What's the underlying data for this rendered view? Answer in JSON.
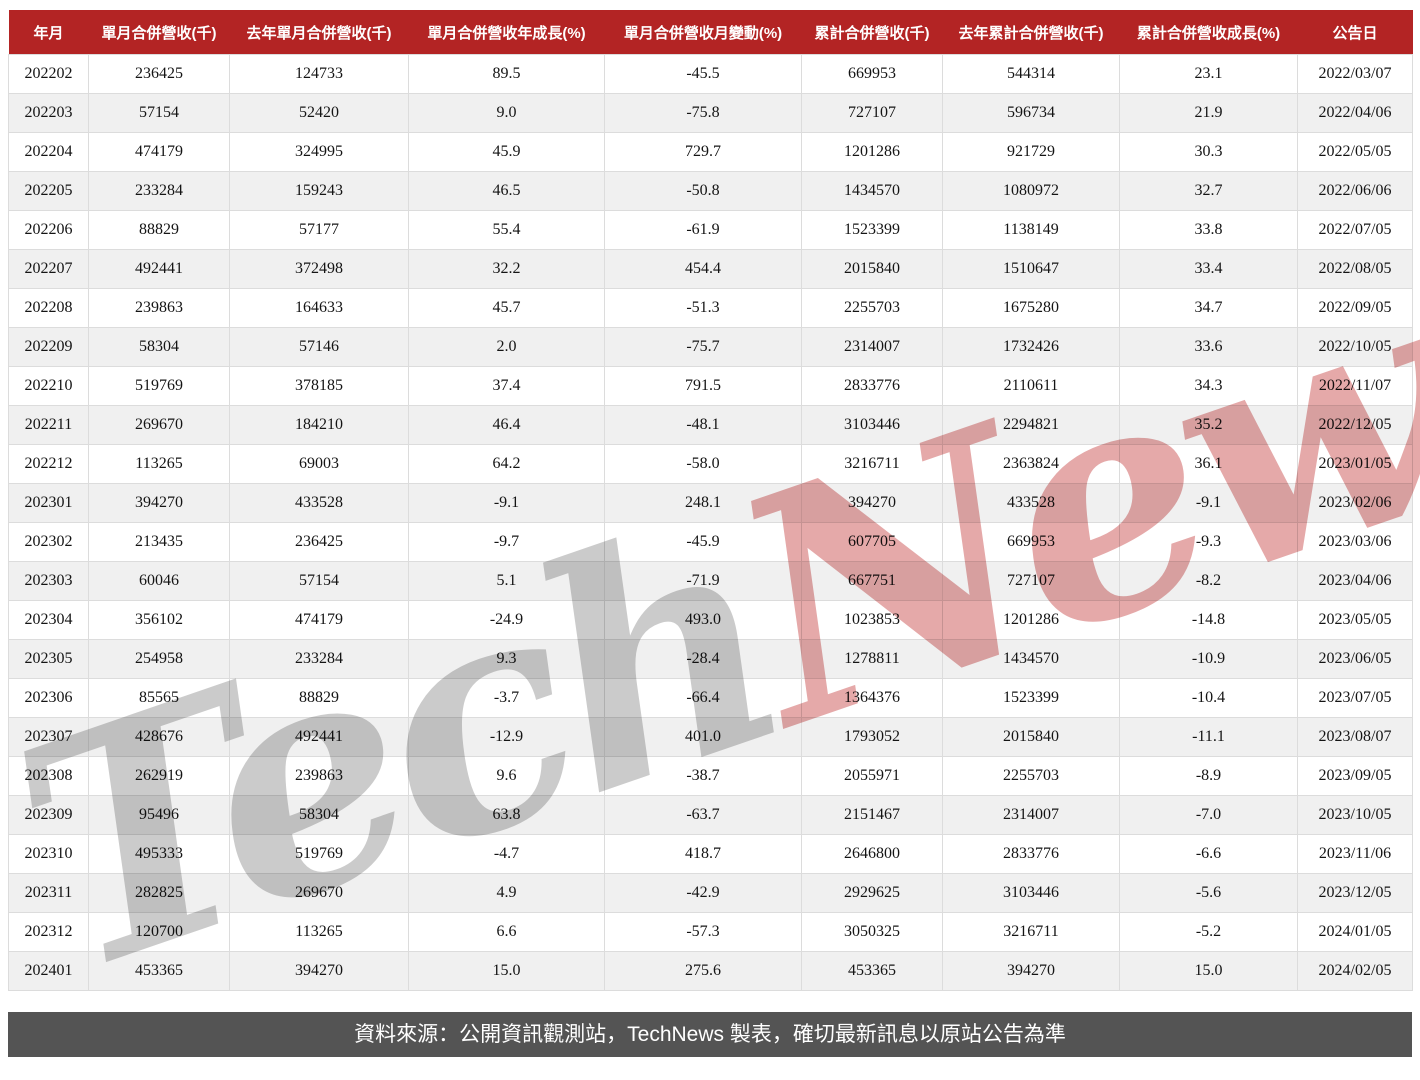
{
  "chart_data": {
    "type": "table",
    "title": "月營收統計表",
    "columns": [
      "年月",
      "單月合併營收(千)",
      "去年單月合併營收(千)",
      "單月合併營收年成長(%)",
      "單月合併營收月變動(%)",
      "累計合併營收(千)",
      "去年累計合併營收(千)",
      "累計合併營收成長(%)",
      "公告日"
    ],
    "rows": [
      [
        "202202",
        "236425",
        "124733",
        "89.5",
        "-45.5",
        "669953",
        "544314",
        "23.1",
        "2022/03/07"
      ],
      [
        "202203",
        "57154",
        "52420",
        "9.0",
        "-75.8",
        "727107",
        "596734",
        "21.9",
        "2022/04/06"
      ],
      [
        "202204",
        "474179",
        "324995",
        "45.9",
        "729.7",
        "1201286",
        "921729",
        "30.3",
        "2022/05/05"
      ],
      [
        "202205",
        "233284",
        "159243",
        "46.5",
        "-50.8",
        "1434570",
        "1080972",
        "32.7",
        "2022/06/06"
      ],
      [
        "202206",
        "88829",
        "57177",
        "55.4",
        "-61.9",
        "1523399",
        "1138149",
        "33.8",
        "2022/07/05"
      ],
      [
        "202207",
        "492441",
        "372498",
        "32.2",
        "454.4",
        "2015840",
        "1510647",
        "33.4",
        "2022/08/05"
      ],
      [
        "202208",
        "239863",
        "164633",
        "45.7",
        "-51.3",
        "2255703",
        "1675280",
        "34.7",
        "2022/09/05"
      ],
      [
        "202209",
        "58304",
        "57146",
        "2.0",
        "-75.7",
        "2314007",
        "1732426",
        "33.6",
        "2022/10/05"
      ],
      [
        "202210",
        "519769",
        "378185",
        "37.4",
        "791.5",
        "2833776",
        "2110611",
        "34.3",
        "2022/11/07"
      ],
      [
        "202211",
        "269670",
        "184210",
        "46.4",
        "-48.1",
        "3103446",
        "2294821",
        "35.2",
        "2022/12/05"
      ],
      [
        "202212",
        "113265",
        "69003",
        "64.2",
        "-58.0",
        "3216711",
        "2363824",
        "36.1",
        "2023/01/05"
      ],
      [
        "202301",
        "394270",
        "433528",
        "-9.1",
        "248.1",
        "394270",
        "433528",
        "-9.1",
        "2023/02/06"
      ],
      [
        "202302",
        "213435",
        "236425",
        "-9.7",
        "-45.9",
        "607705",
        "669953",
        "-9.3",
        "2023/03/06"
      ],
      [
        "202303",
        "60046",
        "57154",
        "5.1",
        "-71.9",
        "667751",
        "727107",
        "-8.2",
        "2023/04/06"
      ],
      [
        "202304",
        "356102",
        "474179",
        "-24.9",
        "493.0",
        "1023853",
        "1201286",
        "-14.8",
        "2023/05/05"
      ],
      [
        "202305",
        "254958",
        "233284",
        "9.3",
        "-28.4",
        "1278811",
        "1434570",
        "-10.9",
        "2023/06/05"
      ],
      [
        "202306",
        "85565",
        "88829",
        "-3.7",
        "-66.4",
        "1364376",
        "1523399",
        "-10.4",
        "2023/07/05"
      ],
      [
        "202307",
        "428676",
        "492441",
        "-12.9",
        "401.0",
        "1793052",
        "2015840",
        "-11.1",
        "2023/08/07"
      ],
      [
        "202308",
        "262919",
        "239863",
        "9.6",
        "-38.7",
        "2055971",
        "2255703",
        "-8.9",
        "2023/09/05"
      ],
      [
        "202309",
        "95496",
        "58304",
        "63.8",
        "-63.7",
        "2151467",
        "2314007",
        "-7.0",
        "2023/10/05"
      ],
      [
        "202310",
        "495333",
        "519769",
        "-4.7",
        "418.7",
        "2646800",
        "2833776",
        "-6.6",
        "2023/11/06"
      ],
      [
        "202311",
        "282825",
        "269670",
        "4.9",
        "-42.9",
        "2929625",
        "3103446",
        "-5.6",
        "2023/12/05"
      ],
      [
        "202312",
        "120700",
        "113265",
        "6.6",
        "-57.3",
        "3050325",
        "3216711",
        "-5.2",
        "2024/01/05"
      ],
      [
        "202401",
        "453365",
        "394270",
        "15.0",
        "275.6",
        "453365",
        "394270",
        "15.0",
        "2024/02/05"
      ]
    ],
    "layout": {
      "header_position": "top",
      "zebra_striping": true,
      "grid": true
    }
  },
  "watermark": {
    "part1": "Tech",
    "part2": "News"
  },
  "footer": {
    "text": "資料來源：公開資訊觀測站，TechNews 製表，確切最新訊息以原站公告為準"
  },
  "colors": {
    "header_bg": "#b32424",
    "header_text": "#ffffff",
    "row_alt_bg": "#f0f0f0",
    "border": "#dcdcdc",
    "footer_bg": "#545454",
    "watermark_gray": "#cbcbcb",
    "watermark_red": "#e5a9a9"
  }
}
